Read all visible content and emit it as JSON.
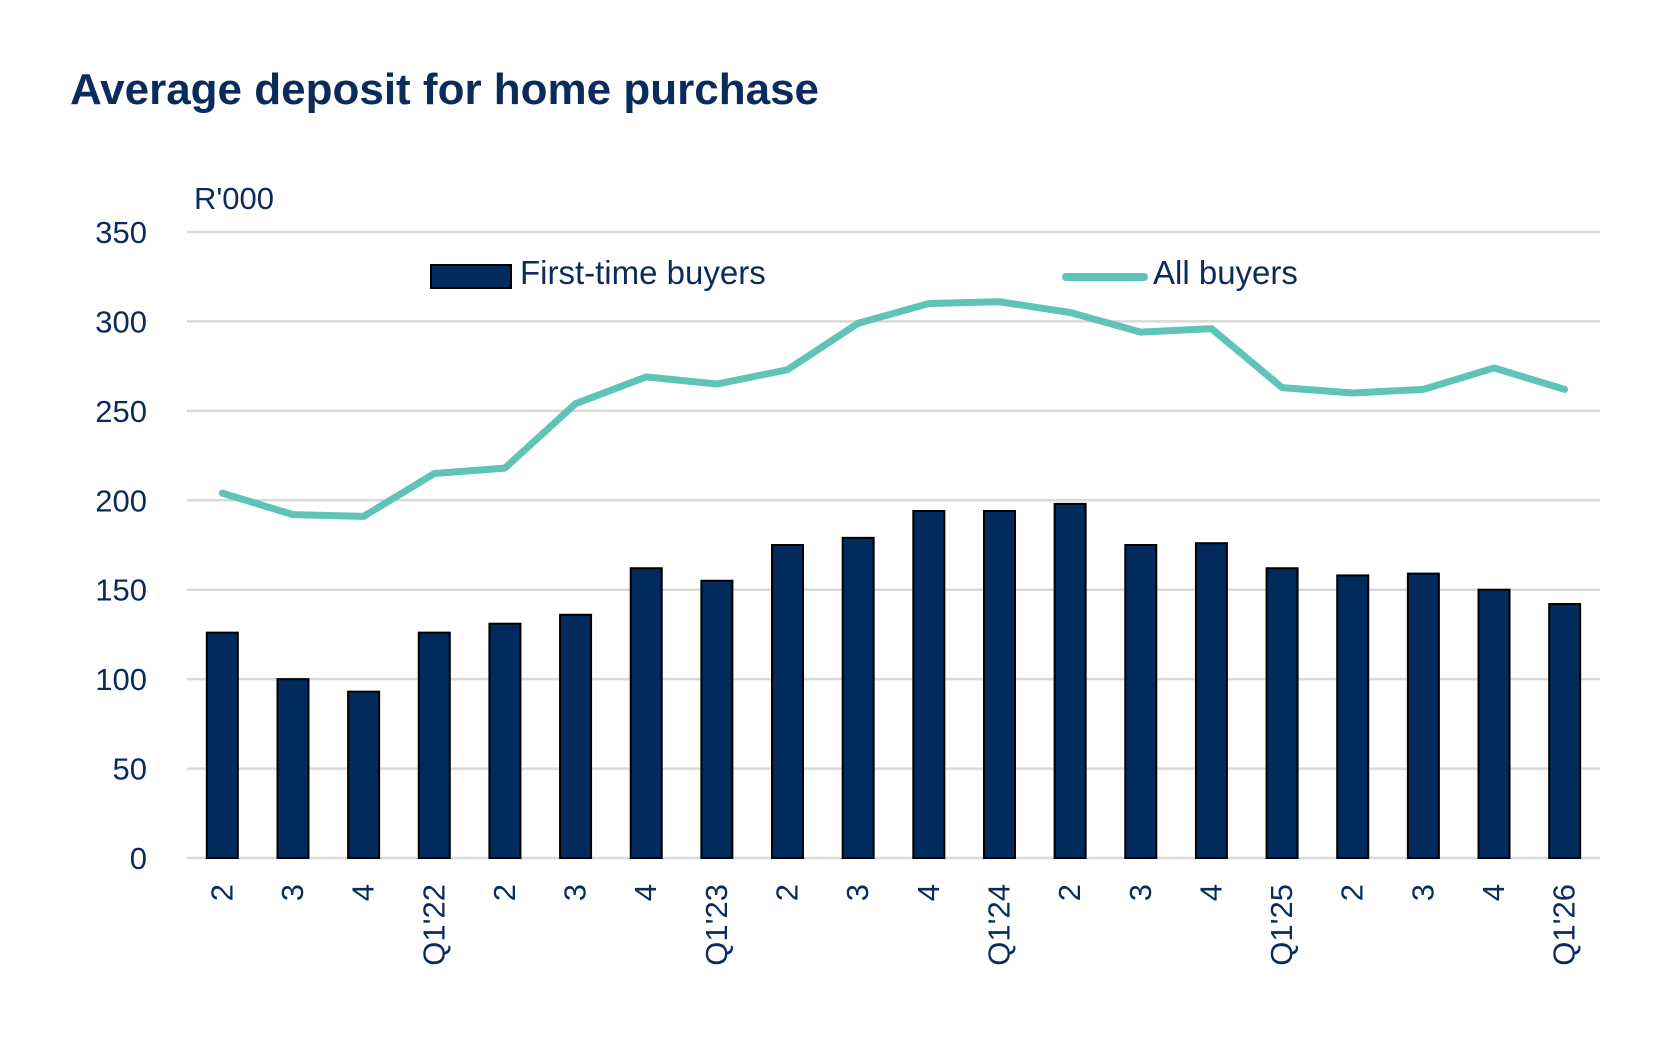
{
  "chart_data": {
    "type": "bar+line",
    "title": "Average deposit for home purchase",
    "ylabel": "R'000",
    "xlabel": "",
    "ylim": [
      0,
      350
    ],
    "yticks": [
      0,
      50,
      100,
      150,
      200,
      250,
      300,
      350
    ],
    "grid": true,
    "legend_position": "top",
    "categories": [
      "2",
      "3",
      "4",
      "Q1'22",
      "2",
      "3",
      "4",
      "Q1'23",
      "2",
      "3",
      "4",
      "Q1'24",
      "2",
      "3",
      "4",
      "Q1'25",
      "2",
      "3",
      "4",
      "Q1'26"
    ],
    "series": [
      {
        "name": "First-time buyers",
        "kind": "bar",
        "color": "#002b5c",
        "values": [
          126,
          100,
          93,
          126,
          131,
          136,
          162,
          155,
          175,
          179,
          194,
          194,
          198,
          175,
          176,
          162,
          158,
          159,
          150,
          142
        ]
      },
      {
        "name": "All buyers",
        "kind": "line",
        "color": "#5fc4b6",
        "values": [
          204,
          192,
          191,
          215,
          218,
          254,
          269,
          265,
          273,
          299,
          310,
          311,
          305,
          294,
          296,
          263,
          260,
          262,
          274,
          262
        ]
      }
    ]
  }
}
